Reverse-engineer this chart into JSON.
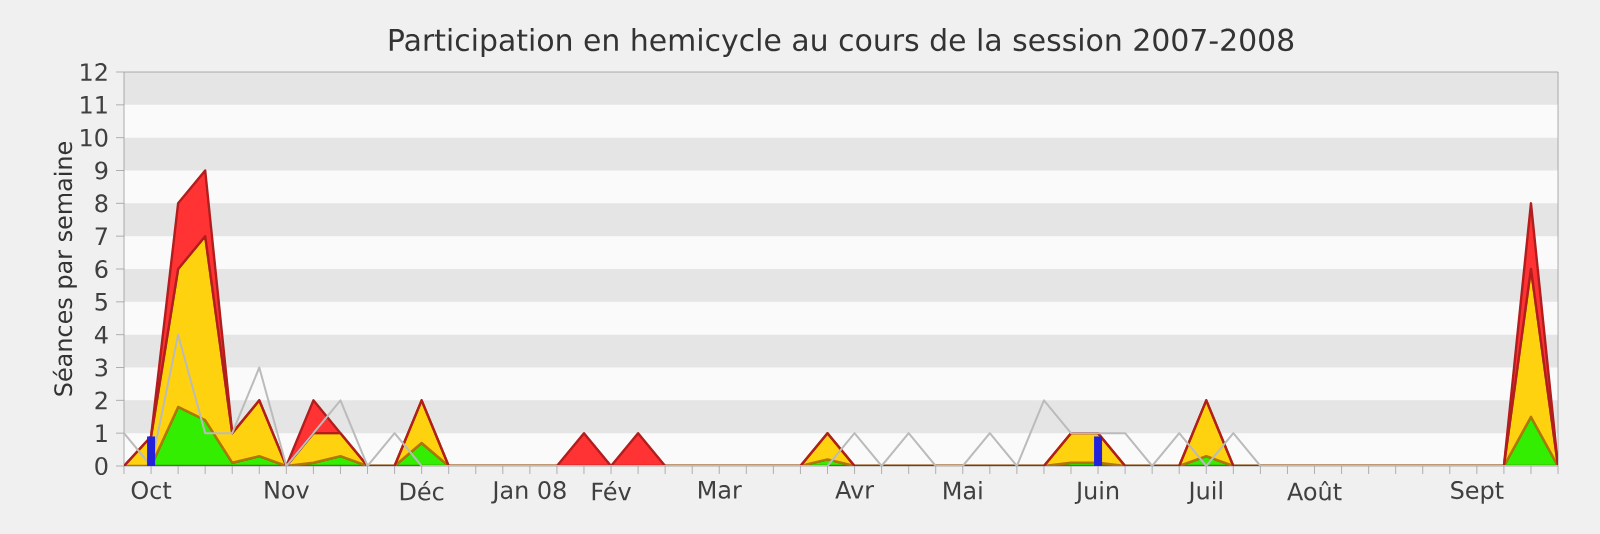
{
  "chart_data": {
    "type": "area",
    "title": "Participation en hemicycle au cours de la session 2007-2008",
    "ylabel": "Séances par semaine",
    "categories": [
      null,
      "Oct",
      null,
      null,
      null,
      null,
      "Nov",
      null,
      null,
      null,
      null,
      "Déc",
      null,
      null,
      null,
      "Jan 08",
      null,
      null,
      "Fév",
      null,
      null,
      null,
      "Mar",
      null,
      null,
      null,
      null,
      "Avr",
      null,
      null,
      null,
      "Mai",
      null,
      null,
      null,
      null,
      "Juin",
      null,
      null,
      null,
      "Juil",
      null,
      null,
      null,
      "Août",
      null,
      null,
      null,
      null,
      null,
      "Sept",
      null,
      null,
      null
    ],
    "ylim": [
      0,
      12
    ],
    "yticks": [
      0,
      1,
      2,
      3,
      4,
      5,
      6,
      7,
      8,
      9,
      10,
      11,
      12
    ],
    "stacked": true,
    "series": [
      {
        "color": "#33ee00",
        "values": [
          0,
          0,
          1.8,
          1.4,
          0.1,
          0.3,
          0,
          0.1,
          0.3,
          0,
          0,
          0.7,
          0,
          0,
          0,
          0,
          0,
          0,
          0,
          0,
          0,
          0,
          0,
          0,
          0,
          0,
          0.2,
          0,
          0,
          0,
          0,
          0,
          0,
          0,
          0,
          0.1,
          0.1,
          0,
          0,
          0,
          0.3,
          0,
          0,
          0,
          0,
          0,
          0,
          0,
          0,
          0,
          0,
          0,
          1.5,
          0
        ]
      },
      {
        "color": "#ffd20f",
        "values": [
          0,
          0.9,
          4.2,
          5.6,
          0.9,
          1.7,
          0,
          0.9,
          0.7,
          0,
          0,
          1.3,
          0,
          0,
          0,
          0,
          0,
          0,
          0,
          0,
          0,
          0,
          0,
          0,
          0,
          0,
          0.8,
          0,
          0,
          0,
          0,
          0,
          0,
          0,
          0,
          0.9,
          0.9,
          0,
          0,
          0,
          1.7,
          0,
          0,
          0,
          0,
          0,
          0,
          0,
          0,
          0,
          0,
          0,
          4.5,
          0
        ]
      },
      {
        "color": "#ff3333",
        "values": [
          0,
          0,
          2,
          2,
          0,
          0,
          0,
          1,
          0,
          0,
          0,
          0,
          0,
          0,
          0,
          0,
          0,
          1,
          0,
          1,
          0,
          0,
          0,
          0,
          0,
          0,
          0,
          0,
          0,
          0,
          0,
          0,
          0,
          0,
          0,
          0,
          0,
          0,
          0,
          0,
          0,
          0,
          0,
          0,
          0,
          0,
          0,
          0,
          0,
          0,
          0,
          0,
          2,
          0
        ]
      },
      {
        "type": "line",
        "color": "#bbbbbb",
        "values": [
          1,
          0,
          4,
          1,
          1,
          3,
          0,
          1,
          2,
          0,
          1,
          0,
          0,
          0,
          0,
          0,
          0,
          0,
          0,
          0,
          0,
          0,
          0,
          0,
          0,
          0,
          0,
          1,
          0,
          1,
          0,
          0,
          1,
          0,
          2,
          1,
          1,
          1,
          0,
          1,
          0,
          1,
          0,
          0,
          0,
          0,
          0,
          0,
          0,
          0,
          0,
          0,
          0,
          0
        ]
      },
      {
        "type": "bar",
        "color": "#2222dd",
        "values": [
          null,
          0.9,
          null,
          null,
          null,
          null,
          null,
          null,
          null,
          null,
          null,
          null,
          null,
          null,
          null,
          null,
          null,
          null,
          null,
          null,
          null,
          null,
          null,
          null,
          null,
          null,
          null,
          null,
          null,
          null,
          null,
          null,
          null,
          null,
          null,
          null,
          0.9,
          null,
          null,
          null,
          null,
          null,
          null,
          null,
          null,
          null,
          null,
          null,
          null,
          null,
          null,
          null,
          null,
          null
        ]
      }
    ]
  }
}
